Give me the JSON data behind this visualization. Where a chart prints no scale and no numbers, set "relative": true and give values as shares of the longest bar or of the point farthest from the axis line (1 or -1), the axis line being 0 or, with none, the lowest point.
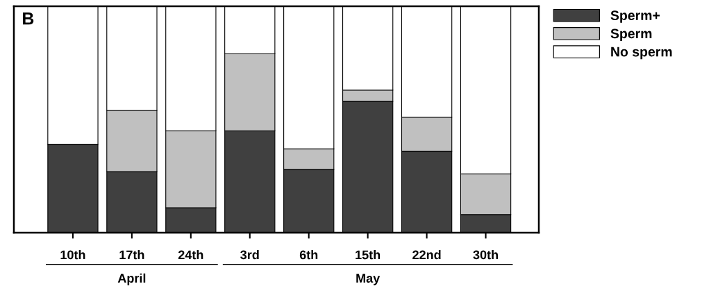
{
  "chart_data": {
    "type": "bar",
    "stacked": true,
    "relative": true,
    "categories": [
      "10th",
      "17th",
      "24th",
      "3rd",
      "6th",
      "15th",
      "22nd",
      "30th"
    ],
    "series": [
      {
        "name": "Sperm+",
        "color": "#404040",
        "values": [
          0.39,
          0.27,
          0.11,
          0.45,
          0.28,
          0.58,
          0.36,
          0.08
        ]
      },
      {
        "name": "Sperm",
        "color": "#c0c0c0",
        "values": [
          0,
          0.27,
          0.34,
          0.34,
          0.09,
          0.05,
          0.15,
          0.18
        ]
      },
      {
        "name": "No sperm",
        "color": "#ffffff",
        "values": [
          0.61,
          0.46,
          0.55,
          0.21,
          0.63,
          0.37,
          0.49,
          0.74
        ]
      }
    ],
    "annotations": [
      "B",
      "April",
      "May"
    ],
    "legend": "right"
  }
}
